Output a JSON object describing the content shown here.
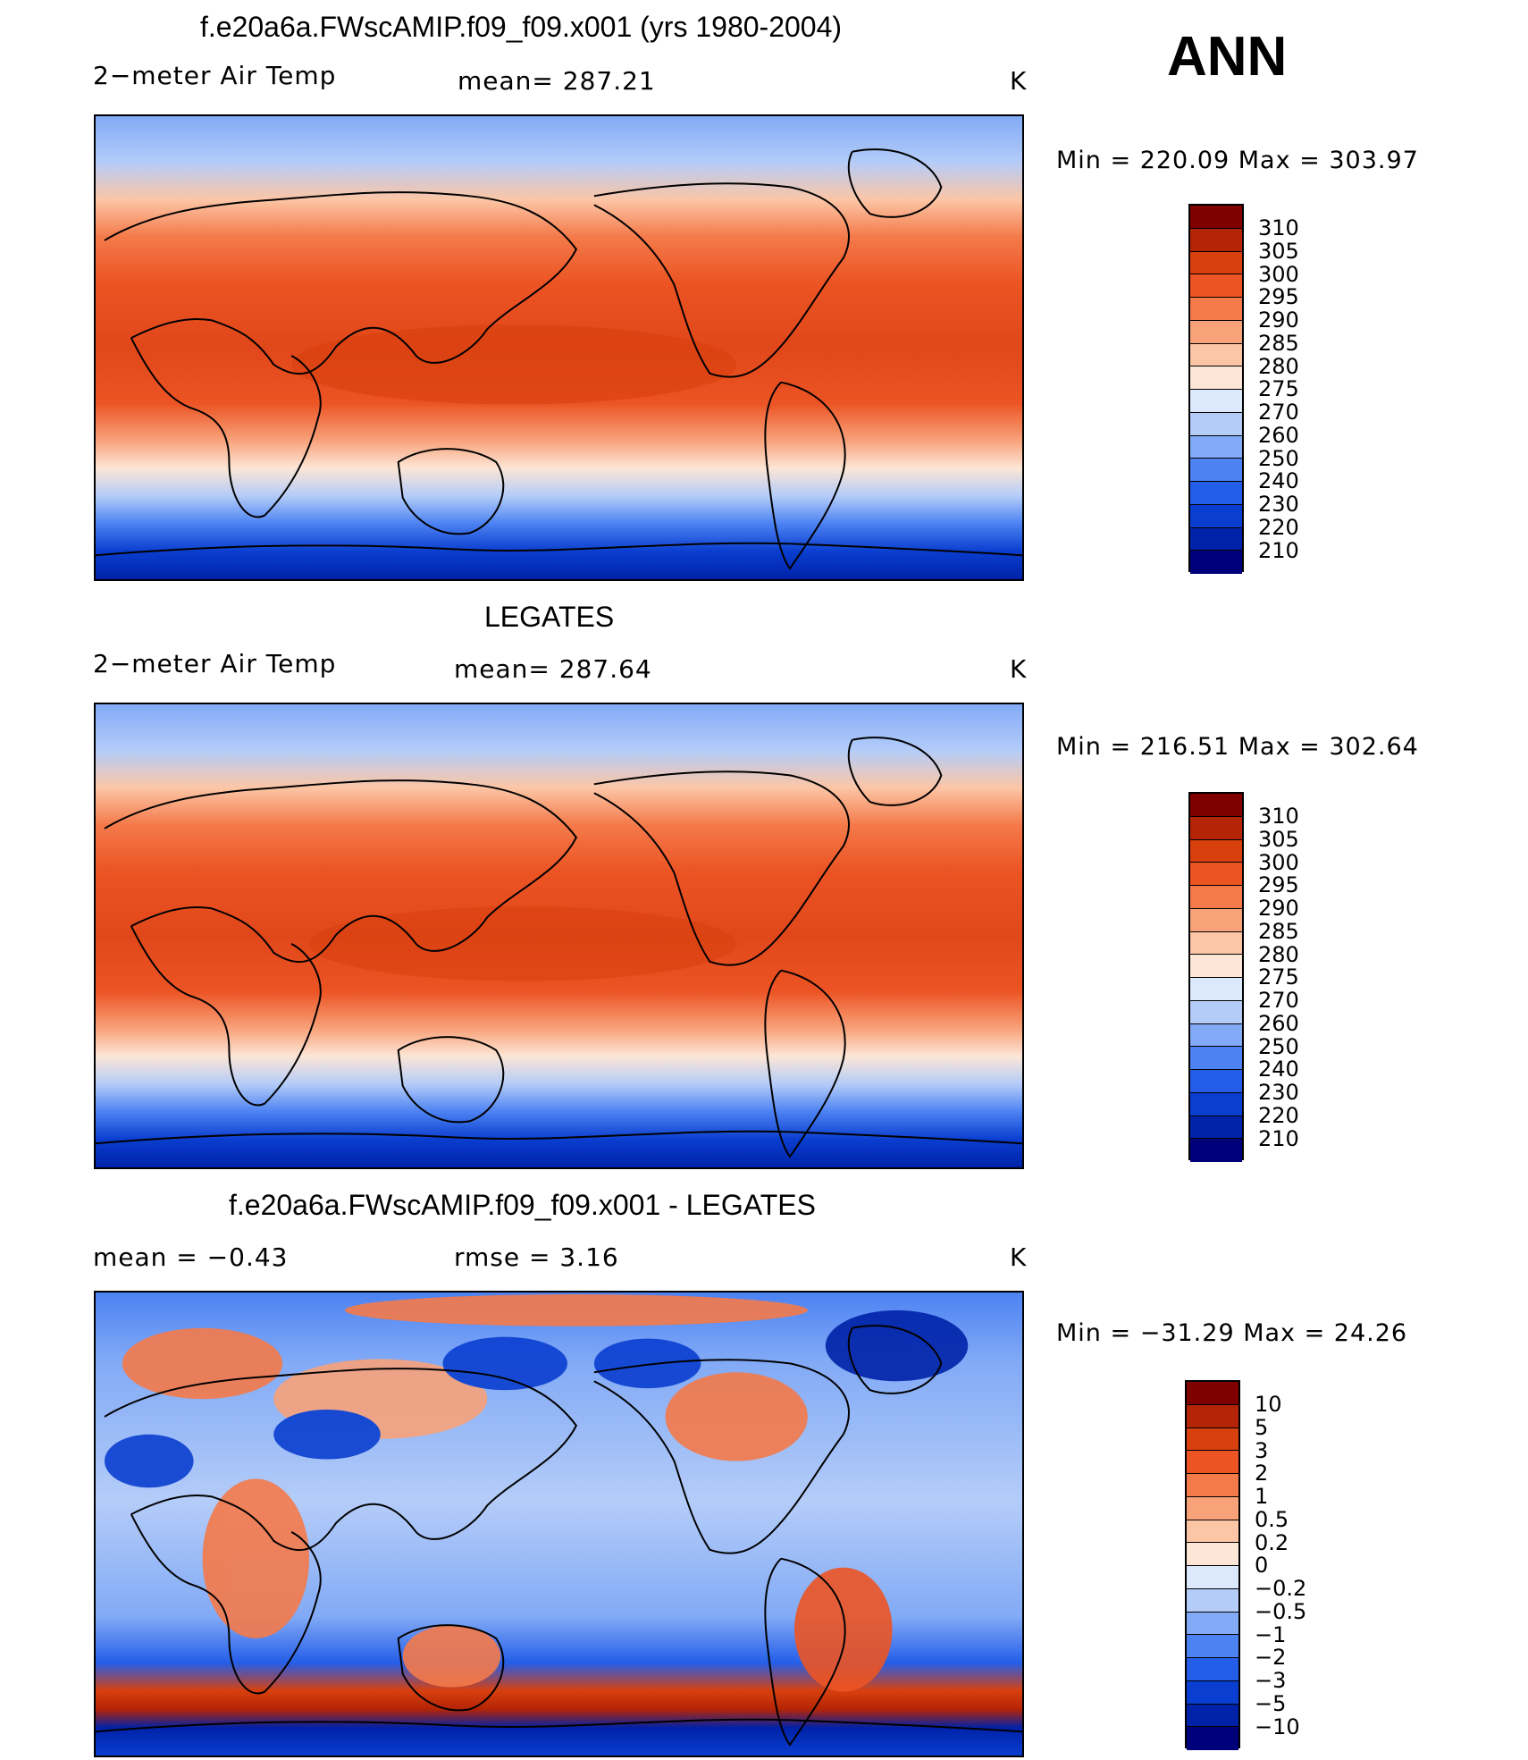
{
  "season": "ANN",
  "units": "K",
  "colors": {
    "temp_scale": [
      "#00007a",
      "#0022a8",
      "#0a3ed0",
      "#245ee8",
      "#4c82f2",
      "#82aaf6",
      "#b4ccf8",
      "#dce8fc",
      "#fde6d6",
      "#fcc6a6",
      "#f8a27a",
      "#f47a4a",
      "#ec5424",
      "#d8400e",
      "#b42406",
      "#800000"
    ],
    "diff_scale": [
      "#00007a",
      "#0022a8",
      "#0a3ed0",
      "#245ee8",
      "#4c82f2",
      "#82aaf6",
      "#b4ccf8",
      "#dce8fc",
      "#fde6d6",
      "#fcc6a6",
      "#f8a27a",
      "#f47a4a",
      "#ec5424",
      "#d8400e",
      "#b42406",
      "#800000"
    ]
  },
  "panels": [
    {
      "id": "model",
      "title": "f.e20a6a.FWscAMIP.f09_f09.x001 (yrs 1980-2004)",
      "variable": "2−meter Air Temp",
      "stat_text": "mean=  287.21",
      "units": "K",
      "minmax": "Min  =  220.09  Max  =  303.97",
      "colorbar_labels": [
        "310",
        "305",
        "300",
        "295",
        "290",
        "285",
        "280",
        "275",
        "270",
        "260",
        "250",
        "240",
        "230",
        "220",
        "210"
      ]
    },
    {
      "id": "obs",
      "title": "LEGATES",
      "variable": "2−meter Air Temp",
      "stat_text": "mean=  287.64",
      "units": "K",
      "minmax": "Min  =  216.51  Max  =  302.64",
      "colorbar_labels": [
        "310",
        "305",
        "300",
        "295",
        "290",
        "285",
        "280",
        "275",
        "270",
        "260",
        "250",
        "240",
        "230",
        "220",
        "210"
      ]
    },
    {
      "id": "diff",
      "title": "f.e20a6a.FWscAMIP.f09_f09.x001 - LEGATES",
      "variable": "mean  =    −0.43",
      "stat_text": "rmse  =     3.16",
      "units": "K",
      "minmax": "Min  =  −31.29  Max  =    24.26",
      "colorbar_labels": [
        "10",
        "5",
        "3",
        "2",
        "1",
        "0.5",
        "0.2",
        "0",
        "−0.2",
        "−0.5",
        "−1",
        "−2",
        "−3",
        "−5",
        "−10"
      ]
    }
  ]
}
